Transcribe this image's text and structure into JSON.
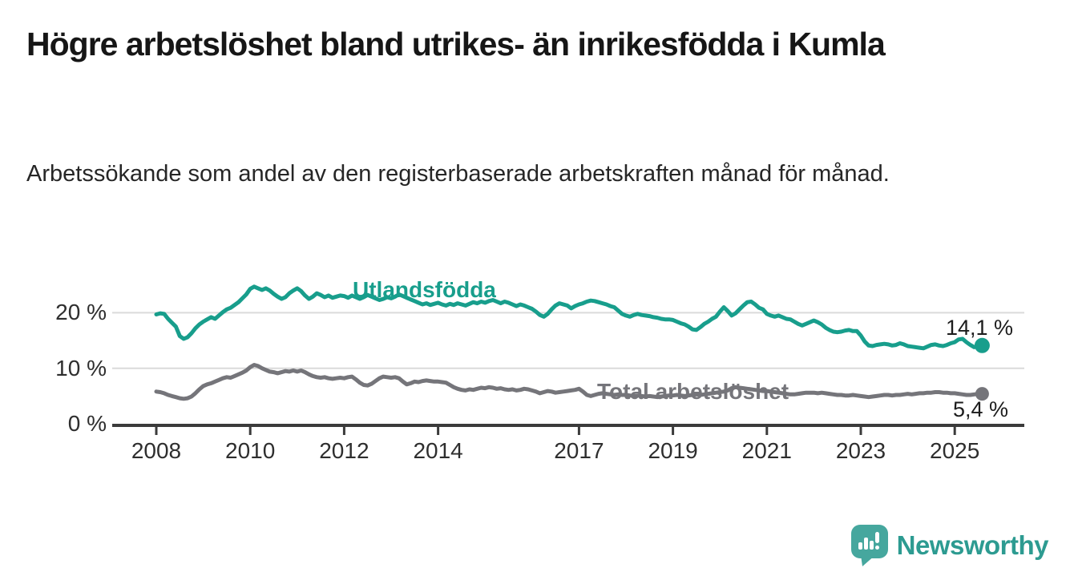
{
  "header": {
    "title": "Högre arbetslöshet bland utrikes- än inrikesfödda i Kumla",
    "subtitle": "Arbetssökande som andel av den registerbaserade arbetskraften månad för månad."
  },
  "chart_data": {
    "type": "line",
    "unit": "%",
    "x_start_year": 2008,
    "x_step_months": 1,
    "x_end": "2025-08",
    "ylim": [
      0,
      27
    ],
    "grid": "horizontal",
    "grid_color": "#dadada",
    "axis_color": "#3b3b3b",
    "y_ticks": [
      {
        "label": "0 %",
        "value": 0
      },
      {
        "label": "10 %",
        "value": 10
      },
      {
        "label": "20 %",
        "value": 20
      }
    ],
    "x_ticks": [
      {
        "label": "2008",
        "year": 2008
      },
      {
        "label": "2010",
        "year": 2010
      },
      {
        "label": "2012",
        "year": 2012
      },
      {
        "label": "2014",
        "year": 2014
      },
      {
        "label": "2017",
        "year": 2017
      },
      {
        "label": "2019",
        "year": 2019
      },
      {
        "label": "2021",
        "year": 2021
      },
      {
        "label": "2023",
        "year": 2023
      },
      {
        "label": "2025",
        "year": 2025
      }
    ],
    "series": [
      {
        "name": "Utlandsfödda",
        "color": "#189e8c",
        "end_label": "14,1 %",
        "end_value": 14.1,
        "values": [
          19.7,
          19.9,
          19.8,
          18.9,
          18.2,
          17.5,
          15.8,
          15.3,
          15.6,
          16.3,
          17.2,
          17.9,
          18.4,
          18.8,
          19.2,
          18.9,
          19.5,
          20.1,
          20.6,
          20.9,
          21.4,
          21.9,
          22.6,
          23.3,
          24.3,
          24.7,
          24.4,
          24.1,
          24.4,
          24.0,
          23.4,
          22.9,
          22.5,
          22.8,
          23.5,
          24.0,
          24.4,
          23.9,
          23.1,
          22.5,
          22.9,
          23.5,
          23.2,
          22.8,
          23.1,
          22.7,
          22.9,
          23.1,
          23.0,
          22.7,
          23.1,
          22.8,
          22.5,
          22.8,
          23.2,
          22.9,
          22.6,
          22.3,
          22.5,
          22.8,
          22.6,
          22.9,
          23.3,
          23.0,
          22.7,
          22.4,
          22.1,
          21.8,
          21.5,
          21.7,
          21.4,
          21.6,
          21.8,
          21.5,
          21.3,
          21.6,
          21.4,
          21.7,
          21.5,
          21.3,
          21.6,
          21.9,
          21.7,
          22.0,
          21.8,
          22.1,
          22.3,
          22.0,
          21.7,
          22.0,
          21.8,
          21.5,
          21.2,
          21.5,
          21.3,
          21.0,
          20.7,
          20.2,
          19.6,
          19.3,
          19.8,
          20.6,
          21.3,
          21.7,
          21.5,
          21.3,
          20.8,
          21.2,
          21.5,
          21.7,
          22.0,
          22.2,
          22.1,
          21.9,
          21.7,
          21.5,
          21.2,
          21.0,
          20.4,
          19.8,
          19.5,
          19.3,
          19.6,
          19.8,
          19.6,
          19.5,
          19.4,
          19.2,
          19.1,
          18.9,
          18.8,
          18.8,
          18.7,
          18.4,
          18.1,
          17.9,
          17.5,
          17.0,
          16.9,
          17.4,
          18.0,
          18.4,
          18.9,
          19.3,
          20.2,
          21.0,
          20.3,
          19.5,
          19.9,
          20.6,
          21.3,
          21.9,
          22.0,
          21.5,
          20.9,
          20.6,
          19.8,
          19.5,
          19.3,
          19.5,
          19.2,
          18.9,
          18.8,
          18.4,
          18.0,
          17.7,
          18.0,
          18.3,
          18.6,
          18.3,
          17.9,
          17.3,
          16.9,
          16.6,
          16.5,
          16.6,
          16.8,
          16.9,
          16.7,
          16.7,
          15.9,
          14.8,
          14.1,
          14.0,
          14.2,
          14.3,
          14.4,
          14.3,
          14.1,
          14.2,
          14.5,
          14.3,
          14.0,
          13.9,
          13.8,
          13.7,
          13.6,
          13.9,
          14.2,
          14.3,
          14.1,
          14.0,
          14.2,
          14.5,
          14.7,
          15.2,
          15.3,
          14.7,
          14.2,
          13.8,
          14.0,
          14.1
        ]
      },
      {
        "name": "Total arbetslöshet",
        "color": "#75757a",
        "end_label": "5,4 %",
        "end_value": 5.4,
        "values": [
          5.8,
          5.7,
          5.5,
          5.2,
          5.0,
          4.8,
          4.6,
          4.5,
          4.6,
          4.9,
          5.5,
          6.2,
          6.8,
          7.1,
          7.3,
          7.6,
          7.9,
          8.2,
          8.4,
          8.3,
          8.6,
          8.9,
          9.2,
          9.6,
          10.2,
          10.6,
          10.4,
          10.0,
          9.7,
          9.4,
          9.3,
          9.1,
          9.3,
          9.5,
          9.4,
          9.6,
          9.4,
          9.6,
          9.3,
          8.9,
          8.6,
          8.4,
          8.3,
          8.4,
          8.2,
          8.1,
          8.2,
          8.3,
          8.2,
          8.4,
          8.5,
          8.0,
          7.4,
          7.0,
          6.9,
          7.2,
          7.7,
          8.2,
          8.5,
          8.4,
          8.3,
          8.4,
          8.2,
          7.6,
          7.1,
          7.3,
          7.6,
          7.5,
          7.7,
          7.8,
          7.7,
          7.6,
          7.6,
          7.5,
          7.4,
          7.0,
          6.6,
          6.3,
          6.1,
          6.0,
          6.2,
          6.1,
          6.3,
          6.5,
          6.4,
          6.6,
          6.5,
          6.3,
          6.4,
          6.2,
          6.1,
          6.2,
          6.0,
          6.1,
          6.3,
          6.2,
          6.0,
          5.8,
          5.5,
          5.7,
          5.9,
          5.8,
          5.6,
          5.7,
          5.8,
          5.9,
          6.0,
          6.1,
          6.3,
          5.8,
          5.2,
          5.0,
          5.2,
          5.4,
          5.5,
          5.4,
          5.3,
          5.2,
          5.3,
          5.2,
          5.2,
          5.1,
          5.0,
          5.1,
          5.0,
          4.9,
          5.0,
          4.9,
          4.8,
          4.9,
          5.0,
          5.1,
          5.1,
          5.2,
          5.1,
          5.0,
          5.1,
          5.2,
          5.3,
          5.2,
          5.3,
          5.4,
          5.5,
          5.6,
          5.7,
          5.8,
          6.0,
          6.4,
          6.6,
          6.5,
          6.4,
          6.3,
          6.2,
          6.1,
          6.0,
          5.9,
          5.9,
          5.8,
          5.7,
          5.6,
          5.5,
          5.4,
          5.3,
          5.3,
          5.4,
          5.5,
          5.6,
          5.6,
          5.6,
          5.5,
          5.6,
          5.5,
          5.4,
          5.3,
          5.2,
          5.2,
          5.1,
          5.1,
          5.2,
          5.1,
          5.0,
          4.9,
          4.8,
          4.9,
          5.0,
          5.1,
          5.2,
          5.2,
          5.1,
          5.2,
          5.2,
          5.3,
          5.4,
          5.3,
          5.4,
          5.5,
          5.5,
          5.6,
          5.6,
          5.7,
          5.7,
          5.6,
          5.6,
          5.5,
          5.5,
          5.4,
          5.3,
          5.2,
          5.2,
          5.3,
          5.4,
          5.4
        ]
      }
    ]
  },
  "footer": {
    "logo_text": "Newsworthy",
    "logo_text_color": "#2d9b91",
    "logo_icon_color": "#46a79e"
  }
}
